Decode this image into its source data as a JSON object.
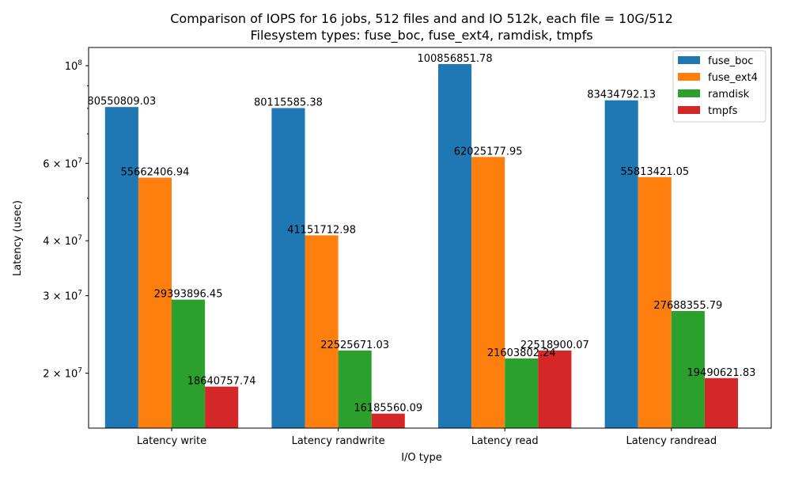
{
  "chart_data": {
    "type": "bar",
    "title_line1": "Comparison of IOPS for 16 jobs, 512 files and  and IO 512k, each file = 10G/512",
    "title_line2": "Filesystem types: fuse_boc, fuse_ext4, ramdisk, tmpfs",
    "xlabel": "I/O type",
    "ylabel": "Latency (usec)",
    "yscale": "log",
    "ylim": [
      15000000,
      110000000
    ],
    "categories": [
      "Latency write",
      "Latency randwrite",
      "Latency read",
      "Latency randread"
    ],
    "series": [
      {
        "name": "fuse_boc",
        "color": "#1f77b4",
        "values": [
          80550809.03,
          80115585.38,
          100856851.78,
          83434792.13
        ],
        "labels": [
          "80550809.03",
          "80115585.38",
          "100856851.78",
          "83434792.13"
        ]
      },
      {
        "name": "fuse_ext4",
        "color": "#ff7f0e",
        "values": [
          55662406.94,
          41151712.98,
          62025177.95,
          55813421.05
        ],
        "labels": [
          "55662406.94",
          "41151712.98",
          "62025177.95",
          "55813421.05"
        ]
      },
      {
        "name": "ramdisk",
        "color": "#2ca02c",
        "values": [
          29393896.45,
          22525671.03,
          21603802.24,
          27688355.79
        ],
        "labels": [
          "29393896.45",
          "22525671.03",
          "21603802.24",
          "27688355.79"
        ]
      },
      {
        "name": "tmpfs",
        "color": "#d62728",
        "values": [
          18640757.74,
          16185560.09,
          22518900.07,
          19490621.83
        ],
        "labels": [
          "18640757.74",
          "16185560.09",
          "22518900.07",
          "19490621.83"
        ]
      }
    ],
    "yticks": [
      {
        "value": 20000000,
        "mant": "2",
        "exp": "7"
      },
      {
        "value": 30000000,
        "mant": "3",
        "exp": "7"
      },
      {
        "value": 40000000,
        "mant": "4",
        "exp": "7"
      },
      {
        "value": 60000000,
        "mant": "6",
        "exp": "7"
      },
      {
        "value": 100000000,
        "mant": "",
        "exp": "8"
      }
    ],
    "minor_yticks": [
      50000000,
      70000000,
      80000000,
      90000000
    ],
    "legend_position": "top-right",
    "grid": false
  }
}
